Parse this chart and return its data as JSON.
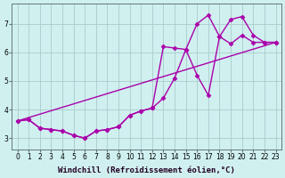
{
  "background_color": "#d0f0f0",
  "grid_color": "#aacccc",
  "line_color": "#aa00aa",
  "marker": "D",
  "marker_size": 2.5,
  "line_width": 1.0,
  "xlabel": "Windchill (Refroidissement éolien,°C)",
  "xlabel_fontsize": 6.5,
  "tick_fontsize": 5.5,
  "xlim": [
    -0.5,
    23.5
  ],
  "ylim": [
    2.6,
    7.7
  ],
  "yticks": [
    3,
    4,
    5,
    6,
    7
  ],
  "xticks": [
    0,
    1,
    2,
    3,
    4,
    5,
    6,
    7,
    8,
    9,
    10,
    11,
    12,
    13,
    14,
    15,
    16,
    17,
    18,
    19,
    20,
    21,
    22,
    23
  ],
  "series": [
    {
      "x": [
        0,
        1,
        2,
        3,
        4,
        5,
        6,
        7,
        8,
        9,
        10,
        11,
        12,
        13,
        14,
        15,
        16,
        17,
        18,
        19,
        20,
        21,
        22,
        23
      ],
      "y": [
        3.6,
        3.65,
        3.35,
        3.3,
        3.25,
        3.1,
        3.0,
        3.25,
        3.3,
        3.4,
        3.8,
        3.95,
        4.05,
        6.2,
        6.15,
        6.1,
        5.2,
        4.5,
        6.55,
        7.15,
        7.25,
        6.6,
        6.35,
        6.35
      ],
      "has_marker": true
    },
    {
      "x": [
        0,
        1,
        2,
        3,
        4,
        5,
        6,
        7,
        8,
        9,
        10,
        11,
        12,
        13,
        14,
        15,
        16,
        17,
        18,
        19,
        20,
        21,
        22,
        23
      ],
      "y": [
        3.6,
        3.65,
        3.35,
        3.3,
        3.25,
        3.1,
        3.0,
        3.25,
        3.3,
        3.4,
        3.8,
        3.95,
        4.05,
        4.4,
        5.1,
        6.1,
        7.0,
        7.3,
        6.55,
        6.3,
        6.6,
        6.35,
        6.35,
        6.35
      ],
      "has_marker": true
    },
    {
      "x": [
        0,
        23
      ],
      "y": [
        3.6,
        6.35
      ],
      "has_marker": false
    }
  ]
}
